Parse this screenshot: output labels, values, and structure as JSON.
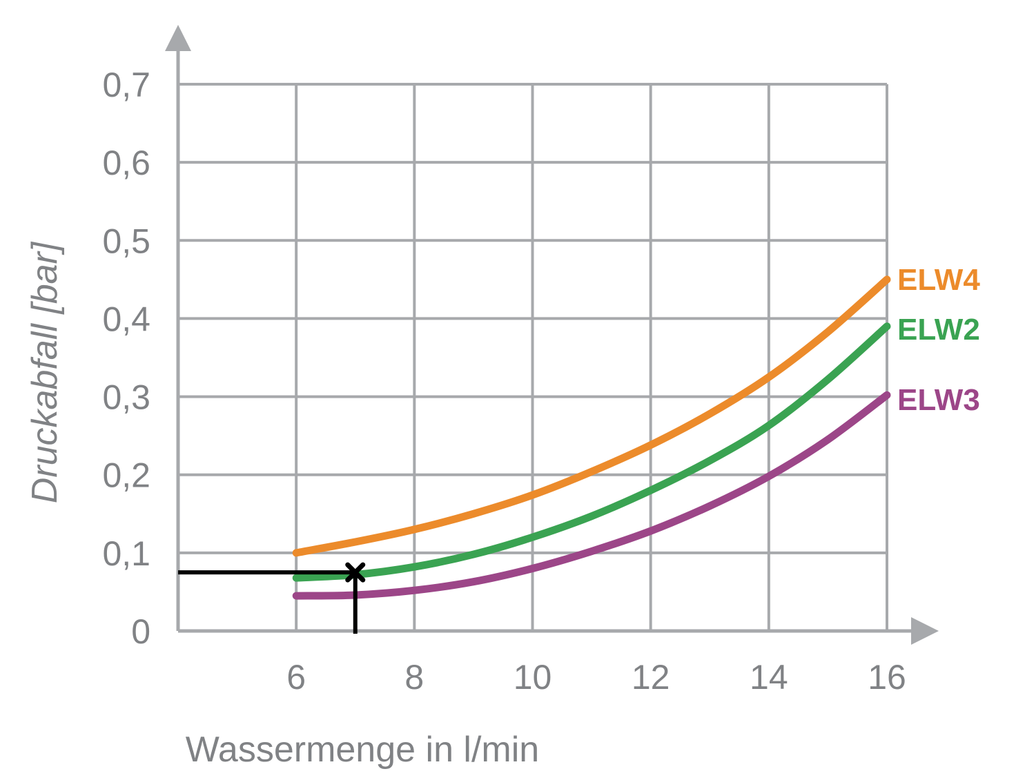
{
  "chart_data": {
    "type": "line",
    "xlabel": "Wassermenge in l/min",
    "ylabel": "Druckabfall [bar]",
    "xlim": [
      4,
      16
    ],
    "ylim": [
      0,
      0.7
    ],
    "x_ticks": [
      "6",
      "8",
      "10",
      "12",
      "14",
      "16"
    ],
    "y_ticks": [
      "0",
      "0,1",
      "0,2",
      "0,3",
      "0,4",
      "0,5",
      "0,6",
      "0,7"
    ],
    "grid": true,
    "series": [
      {
        "name": "ELW4",
        "color": "#ec8b2b",
        "x": [
          6,
          7,
          8,
          9,
          10,
          11,
          12,
          13,
          14,
          15,
          16
        ],
        "y": [
          0.1,
          0.114,
          0.13,
          0.15,
          0.174,
          0.204,
          0.238,
          0.278,
          0.325,
          0.383,
          0.45
        ]
      },
      {
        "name": "ELW2",
        "color": "#3aa352",
        "x": [
          6,
          7,
          8,
          9,
          10,
          11,
          12,
          13,
          14,
          15,
          16
        ],
        "y": [
          0.068,
          0.072,
          0.082,
          0.098,
          0.12,
          0.147,
          0.18,
          0.218,
          0.263,
          0.322,
          0.39
        ]
      },
      {
        "name": "ELW3",
        "color": "#9c4688",
        "x": [
          6,
          7,
          8,
          9,
          10,
          11,
          12,
          13,
          14,
          15,
          16
        ],
        "y": [
          0.045,
          0.046,
          0.052,
          0.063,
          0.08,
          0.102,
          0.128,
          0.16,
          0.198,
          0.245,
          0.302
        ]
      }
    ],
    "annotation": {
      "x": 7,
      "y": 0.075,
      "color": "#000000"
    },
    "colors": {
      "grid": "#a7a9ac",
      "text": "#808285"
    }
  }
}
